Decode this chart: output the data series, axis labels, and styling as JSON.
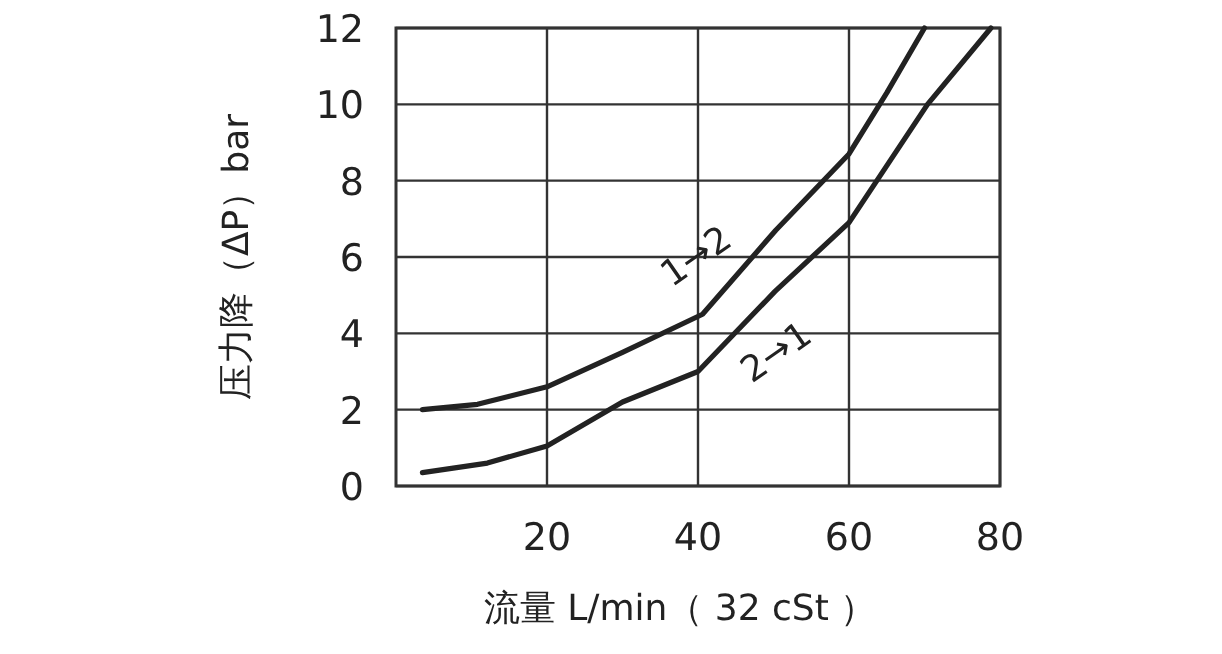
{
  "chart_data": {
    "type": "line",
    "xlabel": "流量 L/min（ 32 cSt ）",
    "ylabel": "压力降（ΔP）bar",
    "xlim": [
      0,
      80
    ],
    "ylim": [
      0,
      12
    ],
    "xticks": [
      20,
      40,
      60,
      80
    ],
    "yticks": [
      0,
      2,
      4,
      6,
      8,
      10,
      12
    ],
    "grid": true,
    "series": [
      {
        "color": "#222222",
        "x": [
          3.5,
          10.8,
          20,
          30,
          40.6,
          50.3,
          60,
          65,
          70
        ],
        "values": [
          2.0,
          2.14,
          2.6,
          3.5,
          4.5,
          6.7,
          8.7,
          10.3,
          12
        ]
      },
      {
        "color": "#222222",
        "x": [
          3.5,
          12.1,
          20,
          30,
          40,
          50.2,
          60,
          70.4,
          78.8
        ],
        "values": [
          0.35,
          0.6,
          1.05,
          2.2,
          3.0,
          5.1,
          6.9,
          10,
          12
        ]
      }
    ],
    "annotations": [
      "1→2",
      "2→1"
    ]
  }
}
